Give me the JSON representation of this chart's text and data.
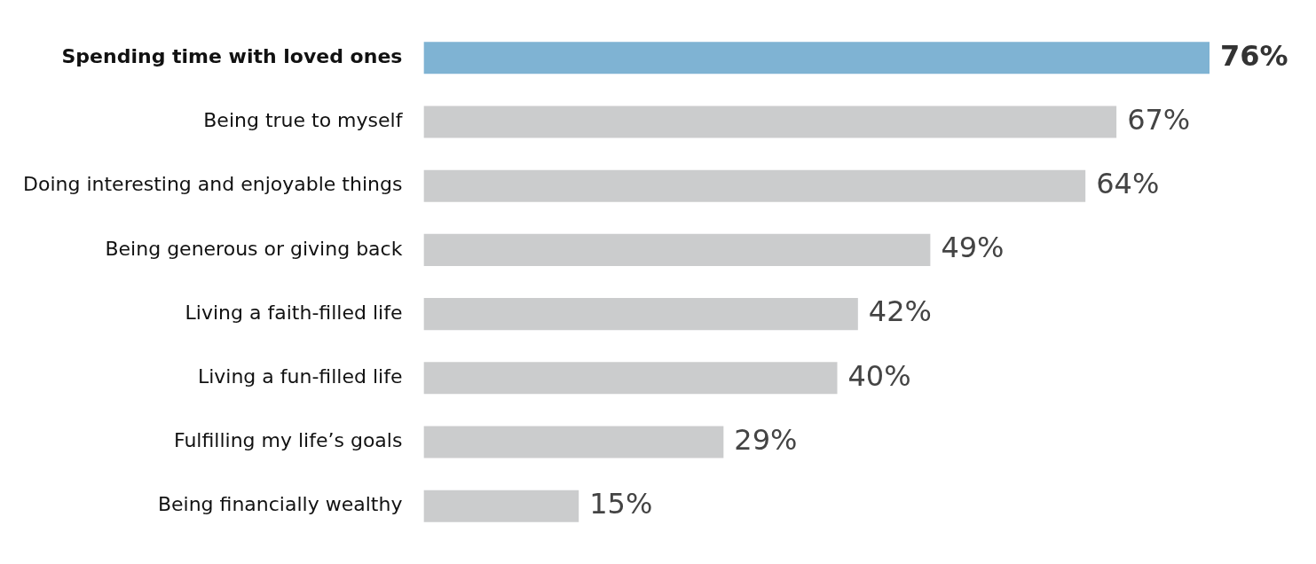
{
  "chart_data": {
    "type": "bar",
    "orientation": "horizontal",
    "categories": [
      "Spending time with loved ones",
      "Being true to myself",
      "Doing interesting and enjoyable things",
      "Being generous or giving back",
      "Living a faith-filled life",
      "Living a fun-filled life",
      "Fulfilling my life’s goals",
      "Being financially wealthy"
    ],
    "values": [
      76,
      67,
      64,
      49,
      42,
      40,
      29,
      15
    ],
    "colors": [
      "#7fb3d3",
      "#cbcccd",
      "#cbcccd",
      "#cbcccd",
      "#cbcccd",
      "#cbcccd",
      "#cbcccd",
      "#cbcccd"
    ],
    "value_labels": [
      "76%",
      "67%",
      "64%",
      "49%",
      "42%",
      "40%",
      "29%",
      "15%"
    ],
    "legend": false
  }
}
